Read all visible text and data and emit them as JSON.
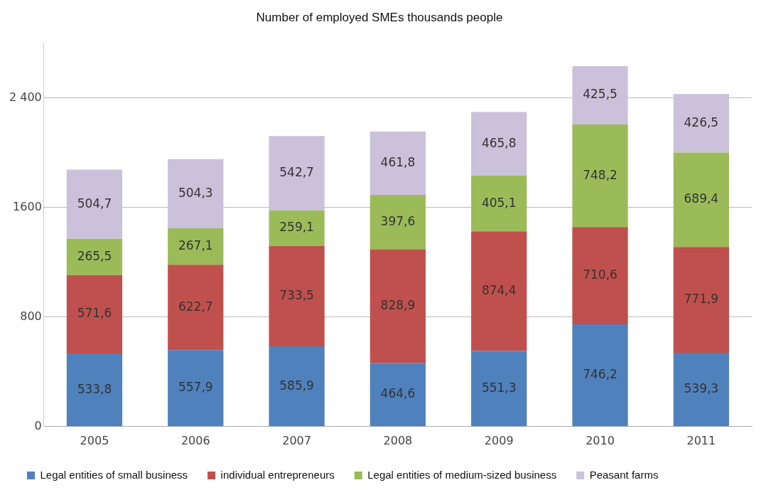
{
  "chart_data": {
    "type": "bar",
    "title": "Number of employed SMEs thousands people",
    "stacked": true,
    "categories": [
      "2005",
      "2006",
      "2007",
      "2008",
      "2009",
      "2010",
      "2011"
    ],
    "series": [
      {
        "name": "Legal entities of small business",
        "color": "#4f81bd",
        "values": [
          533.8,
          557.9,
          585.9,
          464.6,
          551.3,
          746.2,
          539.3
        ],
        "value_labels": [
          "533,8",
          "557,9",
          "585,9",
          "464,6",
          "551,3",
          "746,2",
          "539,3"
        ]
      },
      {
        "name": "individual entrepreneurs",
        "color": "#c0504d",
        "values": [
          571.6,
          622.7,
          733.5,
          828.9,
          874.4,
          710.6,
          771.9
        ],
        "value_labels": [
          "571,6",
          "622,7",
          "733,5",
          "828,9",
          "874,4",
          "710,6",
          "771,9"
        ]
      },
      {
        "name": "Legal entities of medium-sized business",
        "color": "#9bbb59",
        "values": [
          265.5,
          267.1,
          259.1,
          397.6,
          405.1,
          748.2,
          689.4
        ],
        "value_labels": [
          "265,5",
          "267,1",
          "259,1",
          "397,6",
          "405,1",
          "748,2",
          "689,4"
        ]
      },
      {
        "name": "Peasant farms",
        "color": "#ccc1da",
        "values": [
          504.7,
          504.3,
          542.7,
          461.8,
          465.8,
          425.5,
          426.5
        ],
        "value_labels": [
          "504,7",
          "504,3",
          "542,7",
          "461,8",
          "465,8",
          "425,5",
          "426,5"
        ]
      }
    ],
    "ylim": [
      0,
      2800
    ],
    "yticks": [
      0,
      {
        "value": 800,
        "label": "800"
      },
      {
        "value": 1600,
        "label": "1600"
      },
      {
        "value": 2400,
        "label": "2 400"
      }
    ],
    "grid": "y",
    "legend": "bottom"
  }
}
